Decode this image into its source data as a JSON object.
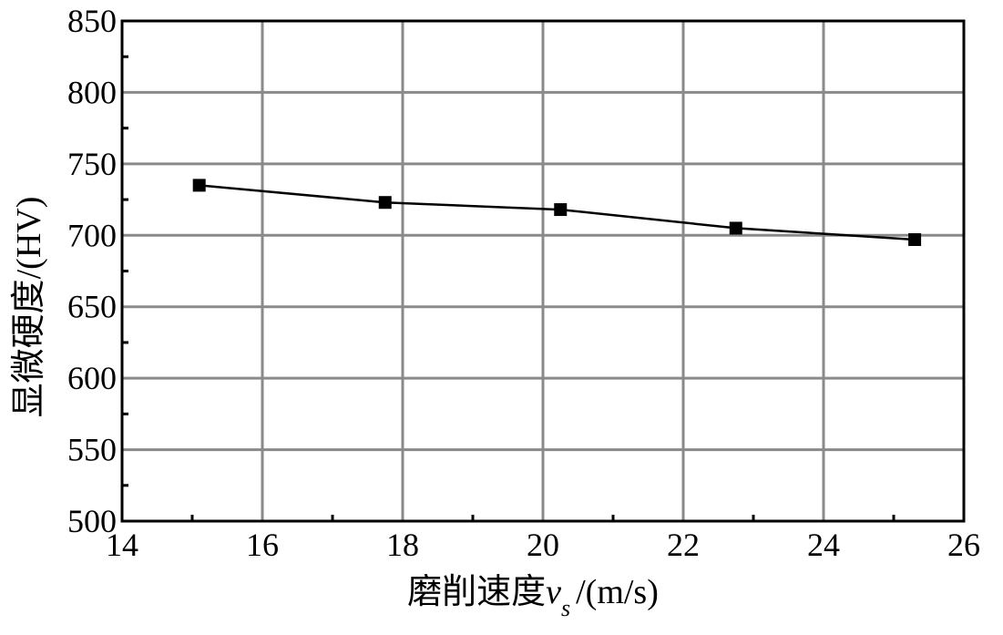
{
  "chart_data": {
    "type": "line",
    "title": "",
    "xlabel": {
      "main": "磨削速度",
      "symbol": "v",
      "subscript": "s",
      "unit": "/(m/s)"
    },
    "ylabel": "显微硬度/(HV)",
    "xlim": [
      14,
      26
    ],
    "ylim": [
      500,
      850
    ],
    "xticks": [
      14,
      16,
      18,
      20,
      22,
      24,
      26
    ],
    "yticks": [
      500,
      550,
      600,
      650,
      700,
      750,
      800,
      850
    ],
    "grid": true,
    "legend": "none",
    "series": [
      {
        "marker": "square",
        "color": "#000000",
        "x": [
          15.1,
          17.75,
          20.25,
          22.75,
          25.3
        ],
        "y": [
          735,
          723,
          718,
          705,
          697
        ]
      }
    ],
    "colors": {
      "grid": "#8a8a8a",
      "axis": "#000000",
      "line": "#000000"
    }
  }
}
